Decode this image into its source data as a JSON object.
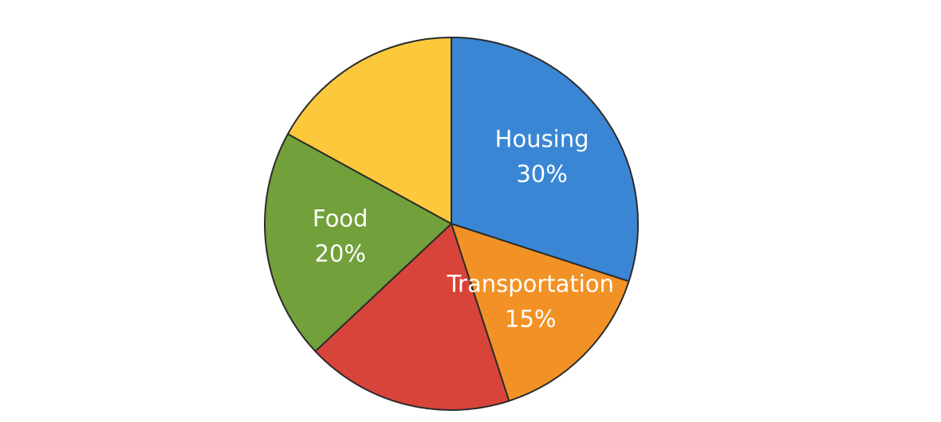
{
  "chart_data": {
    "type": "pie",
    "categories": [
      "Housing",
      "Transportation",
      null,
      "Food",
      null
    ],
    "values": [
      30,
      15,
      18,
      20,
      17
    ],
    "value_labels": [
      "30%",
      "15%",
      null,
      "20%",
      null
    ],
    "colors": [
      "#3a86d4",
      "#f29226",
      "#d9443a",
      "#72a03a",
      "#fbc93b"
    ]
  }
}
